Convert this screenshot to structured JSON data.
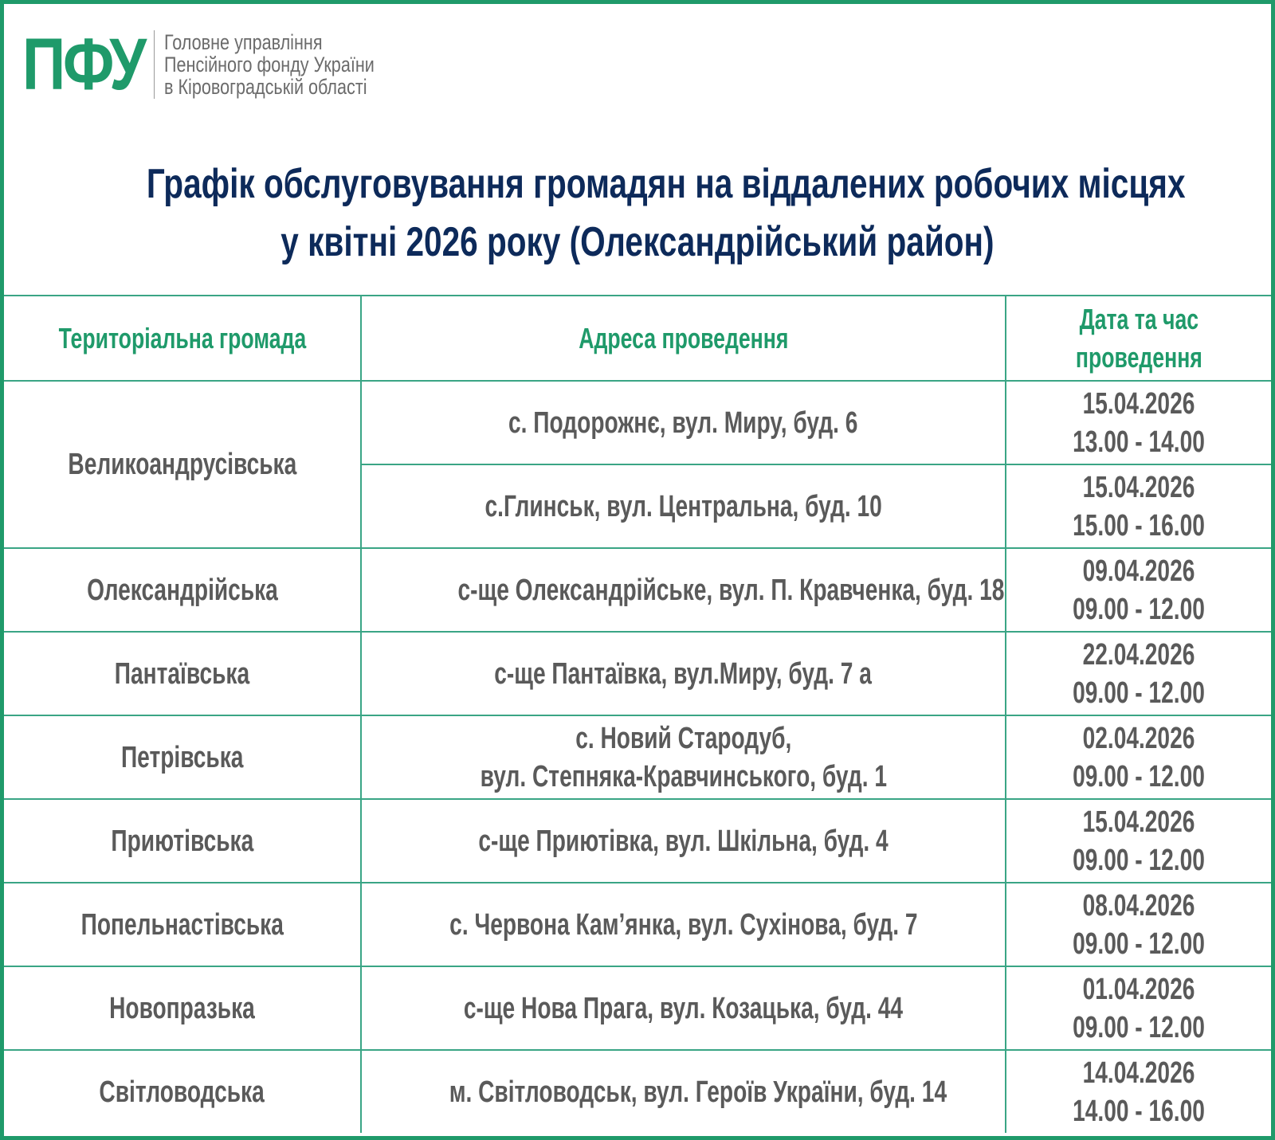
{
  "brand": {
    "logo_text": "ПФУ",
    "org_lines": [
      "Головне управління",
      "Пенсійного фонду України",
      "в Кіровоградській області"
    ],
    "accent_color": "#1f9a6a",
    "title_color": "#0d2a5a"
  },
  "title": {
    "line1": "Графік обслуговування громадян на віддалених робочих місцях",
    "line2": "у квітні 2026 року (Олександрійський район)"
  },
  "table": {
    "headers": {
      "community": "Територіальна громада",
      "address": "Адреса проведення",
      "datetime_line1": "Дата та час",
      "datetime_line2": "проведення"
    },
    "rows": [
      {
        "community": "Великоандрусівська",
        "address": "с. Подорожнє, вул. Миру, буд. 6",
        "address2": "",
        "date": "15.04.2026",
        "time": "13.00 - 14.00"
      },
      {
        "community": "",
        "address": "с.Глинськ, вул. Центральна, буд. 10",
        "address2": "",
        "date": "15.04.2026",
        "time": "15.00 - 16.00"
      },
      {
        "community": "Олександрійська",
        "address": "с-ще Олександрійське, вул. П. Кравченка, буд. 18",
        "address2": "",
        "date": "09.04.2026",
        "time": "09.00 - 12.00"
      },
      {
        "community": "Пантаївська",
        "address": "с-ще Пантаївка, вул.Миру, буд. 7 а",
        "address2": "",
        "date": "22.04.2026",
        "time": "09.00 - 12.00"
      },
      {
        "community": "Петрівська",
        "address": "с. Новий Стародуб,",
        "address2": "вул. Степняка-Кравчинського, буд. 1",
        "date": "02.04.2026",
        "time": "09.00 - 12.00"
      },
      {
        "community": "Приютівська",
        "address": "с-ще Приютівка, вул. Шкільна, буд. 4",
        "address2": "",
        "date": "15.04.2026",
        "time": "09.00 - 12.00"
      },
      {
        "community": "Попельнастівська",
        "address": "с. Червона Кам’янка, вул. Сухінова, буд. 7",
        "address2": "",
        "date": "08.04.2026",
        "time": "09.00 - 12.00"
      },
      {
        "community": "Новопразька",
        "address": "с-ще Нова Прага, вул. Козацька, буд. 44",
        "address2": "",
        "date": "01.04.2026",
        "time": "09.00 - 12.00"
      },
      {
        "community": "Світловодська",
        "address": "м. Світловодськ, вул. Героїв України, буд. 14",
        "address2": "",
        "date": "14.04.2026",
        "time": "14.00 - 16.00"
      }
    ]
  }
}
